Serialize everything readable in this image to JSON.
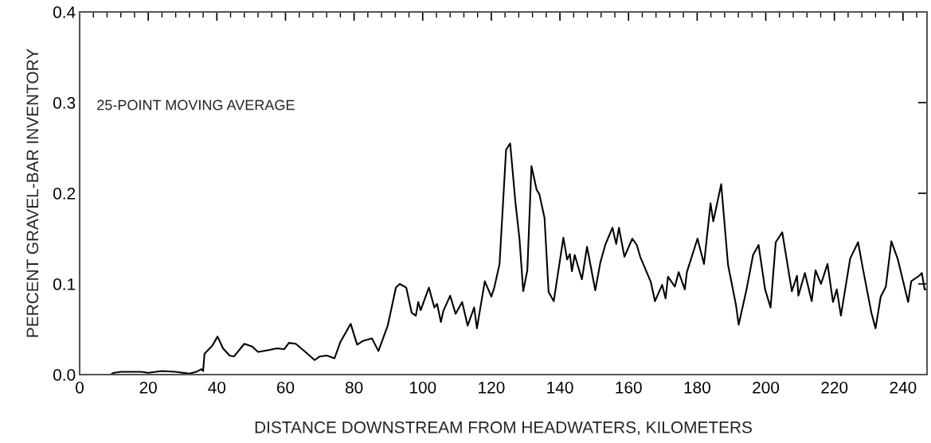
{
  "chart_data": {
    "type": "line",
    "xlabel": "DISTANCE DOWNSTREAM FROM HEADWATERS, KILOMETERS",
    "ylabel": "PERCENT GRAVEL-BAR INVENTORY",
    "annotations": [
      "25-POINT MOVING AVERAGE"
    ],
    "xlim": [
      0,
      247
    ],
    "xticks": [
      0,
      20,
      40,
      60,
      80,
      100,
      120,
      140,
      160,
      180,
      200,
      220,
      240
    ],
    "ylim": [
      0,
      0.4
    ],
    "yticks": [
      {
        "value": 0,
        "label": "0.0"
      },
      0.1,
      0.2,
      0.3,
      0.4
    ],
    "grid": false,
    "marker": "none",
    "line_style": "solid",
    "series": [
      {
        "color": "#000000",
        "x": [
          0,
          9,
          10,
          12,
          18,
          20,
          24,
          28,
          32,
          34,
          35.5,
          36,
          36.4,
          38.7,
          40.2,
          41.8,
          43.7,
          45,
          48,
          50.3,
          52,
          55,
          57.5,
          59.6,
          61,
          63,
          65.8,
          68.5,
          70,
          72,
          74.3,
          76,
          79,
          80.9,
          82.5,
          85.2,
          87.1,
          89.8,
          92.2,
          93.3,
          95.2,
          96.8,
          98,
          98.7,
          99.4,
          101.8,
          103.4,
          104.2,
          105.3,
          106,
          108,
          109.6,
          111.5,
          113.1,
          115,
          115.8,
          118.1,
          120,
          120.8,
          122.4,
          124.3,
          125.5,
          127,
          128.2,
          129.3,
          130.5,
          131.7,
          133.2,
          134,
          135.5,
          136.7,
          138.2,
          141,
          142.1,
          142.9,
          143.5,
          144.3,
          146.4,
          147.9,
          150.3,
          151.8,
          153.3,
          155.3,
          156.4,
          157.2,
          158.8,
          161.1,
          162.4,
          163.4,
          166.5,
          167.7,
          169.8,
          170.8,
          171.5,
          173.5,
          174.6,
          176.4,
          177,
          180.1,
          182,
          183.9,
          184.7,
          187,
          189,
          191.3,
          192.1,
          194.4,
          196.3,
          197.9,
          199.8,
          201.4,
          202.9,
          204.8,
          207.6,
          209.1,
          209.5,
          211.4,
          213.4,
          214.5,
          216.1,
          218,
          219.6,
          220.7,
          221.9,
          224.6,
          226.9,
          228.4,
          230.8,
          232,
          233.5,
          235,
          236.6,
          238.5,
          241.5,
          242.4,
          244.7,
          245.5,
          246.3,
          246.6
        ],
        "values": [
          0,
          0,
          0.002,
          0.003,
          0.003,
          0.002,
          0.004,
          0.003,
          0.001,
          0.003,
          0.006,
          0.004,
          0.023,
          0.032,
          0.042,
          0.029,
          0.021,
          0.02,
          0.034,
          0.031,
          0.025,
          0.027,
          0.029,
          0.028,
          0.035,
          0.034,
          0.025,
          0.016,
          0.02,
          0.021,
          0.018,
          0.036,
          0.056,
          0.033,
          0.037,
          0.04,
          0.026,
          0.054,
          0.096,
          0.1,
          0.096,
          0.068,
          0.065,
          0.08,
          0.071,
          0.096,
          0.074,
          0.078,
          0.058,
          0.07,
          0.087,
          0.067,
          0.08,
          0.054,
          0.074,
          0.051,
          0.103,
          0.086,
          0.095,
          0.122,
          0.248,
          0.255,
          0.191,
          0.15,
          0.092,
          0.115,
          0.23,
          0.204,
          0.199,
          0.173,
          0.091,
          0.081,
          0.151,
          0.127,
          0.133,
          0.114,
          0.132,
          0.105,
          0.141,
          0.093,
          0.124,
          0.144,
          0.162,
          0.144,
          0.162,
          0.13,
          0.15,
          0.143,
          0.13,
          0.102,
          0.081,
          0.099,
          0.084,
          0.108,
          0.097,
          0.113,
          0.094,
          0.113,
          0.15,
          0.122,
          0.189,
          0.169,
          0.21,
          0.121,
          0.077,
          0.055,
          0.094,
          0.132,
          0.143,
          0.094,
          0.074,
          0.146,
          0.157,
          0.092,
          0.109,
          0.087,
          0.112,
          0.081,
          0.115,
          0.1,
          0.122,
          0.08,
          0.094,
          0.065,
          0.128,
          0.146,
          0.115,
          0.068,
          0.051,
          0.086,
          0.097,
          0.147,
          0.127,
          0.08,
          0.103,
          0.109,
          0.112,
          0.094,
          0.094
        ]
      }
    ]
  }
}
